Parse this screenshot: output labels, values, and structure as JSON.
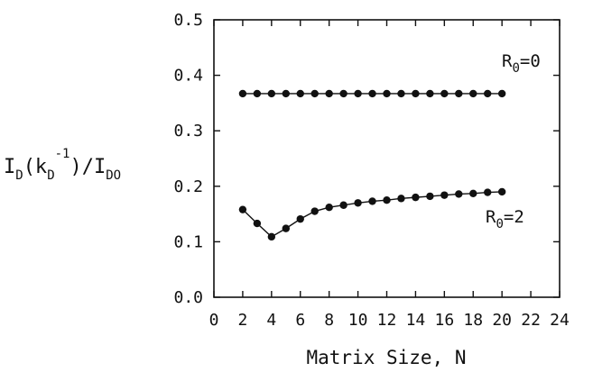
{
  "chart_data": {
    "type": "line",
    "title": "",
    "xlabel": "Matrix Size, N",
    "ylabel": "I_D(k_D^-1)/I_DO",
    "xlim": [
      0,
      24
    ],
    "ylim": [
      0.0,
      0.5
    ],
    "x_ticks": [
      0,
      2,
      4,
      6,
      8,
      10,
      12,
      14,
      16,
      18,
      20,
      22,
      24
    ],
    "y_ticks": [
      0.0,
      0.1,
      0.2,
      0.3,
      0.4,
      0.5
    ],
    "x_tick_labels": [
      "0",
      "2",
      "4",
      "6",
      "8",
      "10",
      "12",
      "14",
      "16",
      "18",
      "20",
      "22",
      "24"
    ],
    "y_tick_labels": [
      "0.0",
      "0.1",
      "0.2",
      "0.3",
      "0.4",
      "0.5"
    ],
    "grid": false,
    "legend": "none",
    "x": [
      2,
      3,
      4,
      5,
      6,
      7,
      8,
      9,
      10,
      11,
      12,
      13,
      14,
      15,
      16,
      17,
      18,
      19,
      20
    ],
    "series": [
      {
        "label": {
          "main": "R",
          "sub": "0",
          "rest": "=0"
        },
        "values": [
          0.367,
          0.367,
          0.367,
          0.367,
          0.367,
          0.367,
          0.367,
          0.367,
          0.367,
          0.367,
          0.367,
          0.367,
          0.367,
          0.367,
          0.367,
          0.367,
          0.367,
          0.367,
          0.367
        ]
      },
      {
        "label": {
          "main": "R",
          "sub": "0",
          "rest": "=2"
        },
        "values": [
          0.158,
          0.133,
          0.109,
          0.124,
          0.141,
          0.155,
          0.162,
          0.166,
          0.17,
          0.173,
          0.175,
          0.178,
          0.18,
          0.182,
          0.184,
          0.186,
          0.187,
          0.189,
          0.19
        ]
      }
    ],
    "ylabel_parts": {
      "i1": "I",
      "s1": "D",
      "open": "(k",
      "s2": "D",
      "sup": "-1",
      "close": ")/I",
      "s3": "DO"
    }
  }
}
